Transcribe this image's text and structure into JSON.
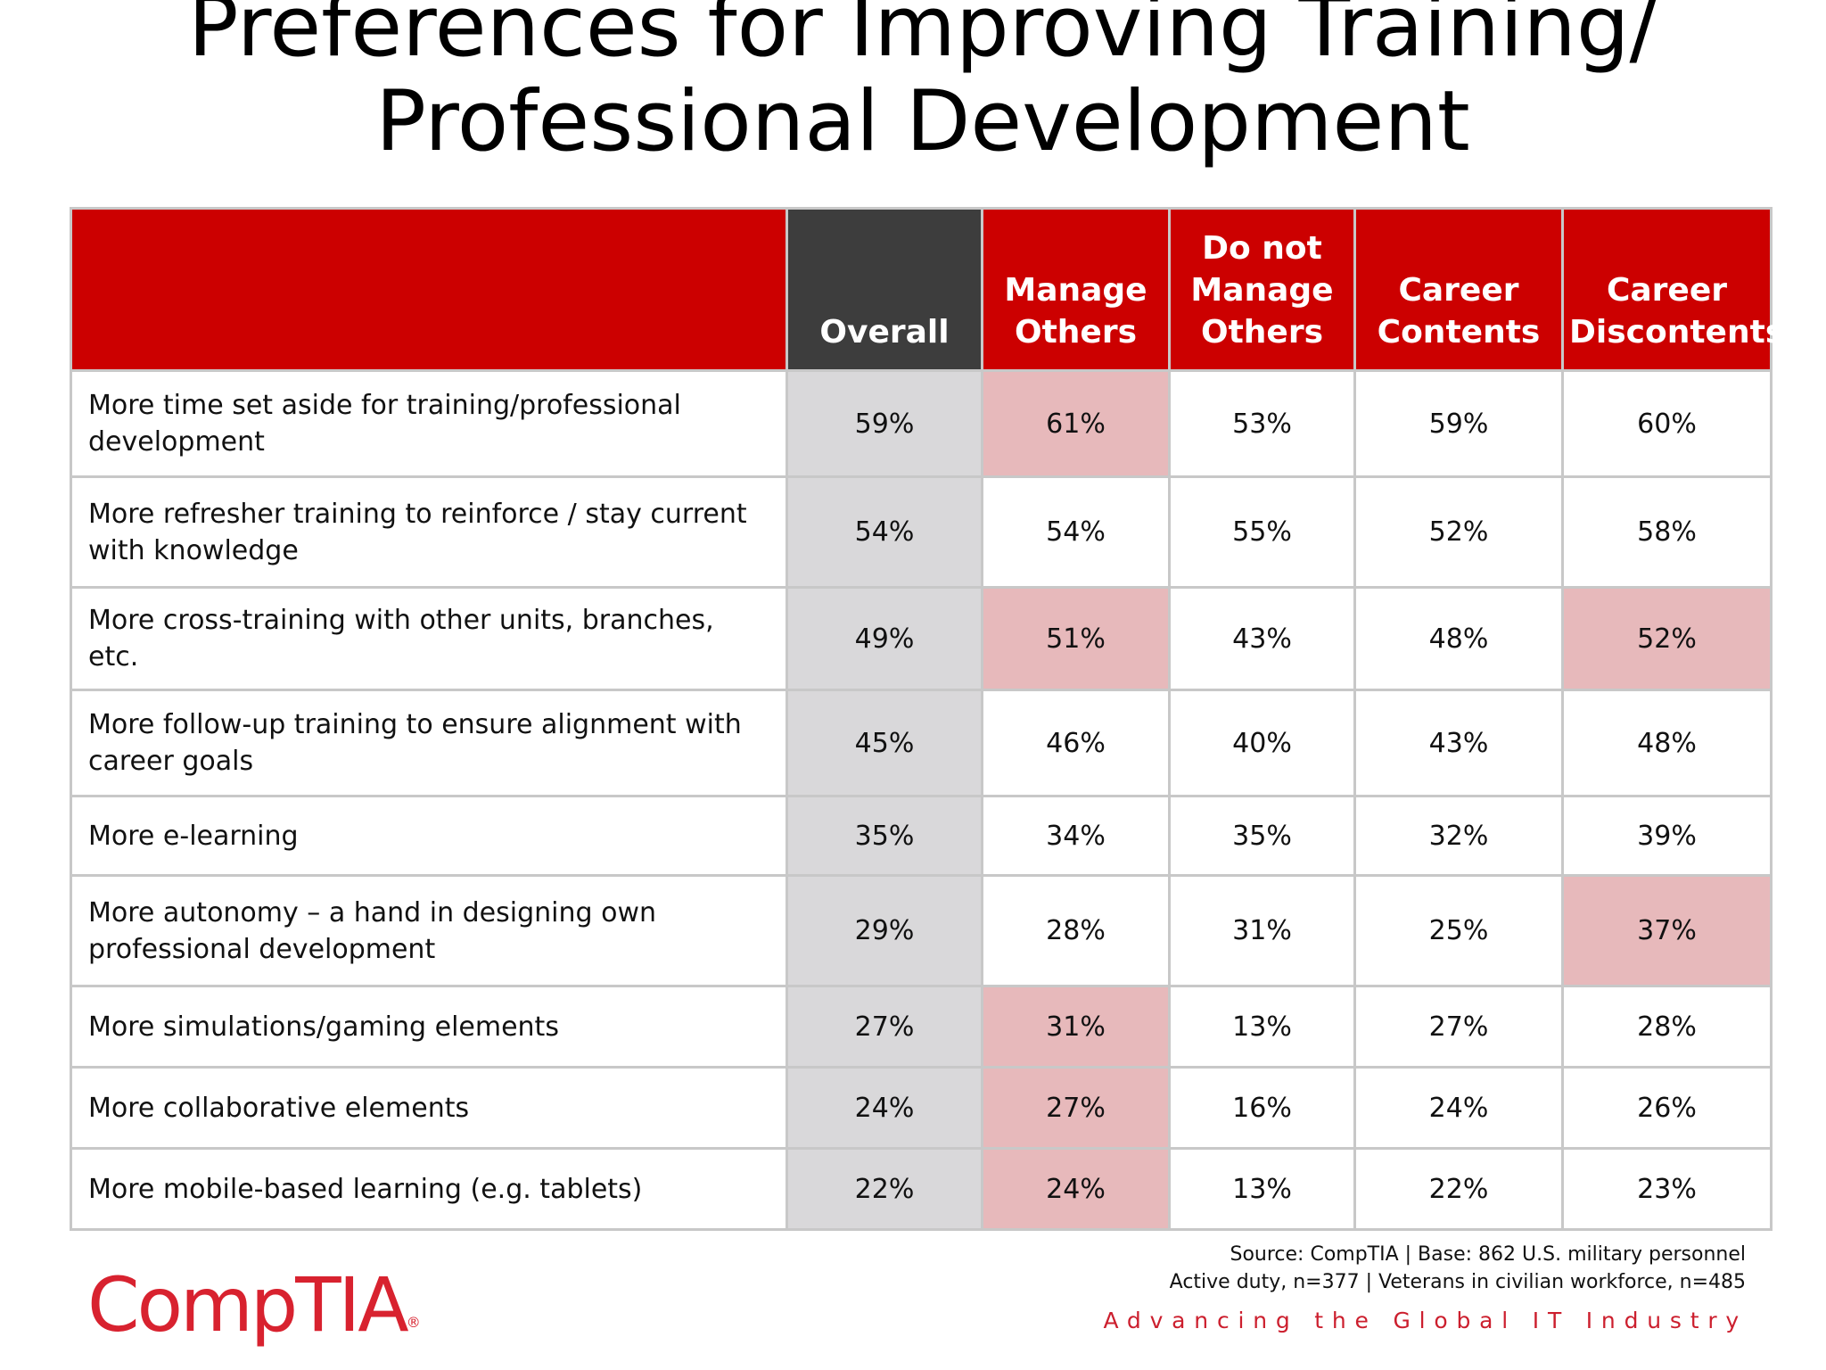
{
  "title": "Preferences for Improving Training/ Professional Development",
  "colors": {
    "header_red": "#cc0000",
    "header_dark": "#3d3d3d",
    "overall_fill": "#d9d8da",
    "highlight_fill": "#e7b9bb",
    "brand_red": "#d8222f"
  },
  "chart_data": {
    "type": "table",
    "title": "Preferences for Improving Training/ Professional Development",
    "columns": [
      "Overall",
      "Manage Others",
      "Do not Manage Others",
      "Career Contents",
      "Career Discontents"
    ],
    "rows": [
      {
        "label": "More time set aside for training/professional development",
        "values": [
          "59%",
          "61%",
          "53%",
          "59%",
          "60%"
        ],
        "highlight": [
          false,
          true,
          false,
          false,
          false
        ]
      },
      {
        "label": "More refresher training to reinforce / stay current with knowledge",
        "values": [
          "54%",
          "54%",
          "55%",
          "52%",
          "58%"
        ],
        "highlight": [
          false,
          false,
          false,
          false,
          false
        ]
      },
      {
        "label": "More cross-training with other units, branches, etc.",
        "values": [
          "49%",
          "51%",
          "43%",
          "48%",
          "52%"
        ],
        "highlight": [
          false,
          true,
          false,
          false,
          true
        ]
      },
      {
        "label": "More follow-up training to ensure alignment with career goals",
        "values": [
          "45%",
          "46%",
          "40%",
          "43%",
          "48%"
        ],
        "highlight": [
          false,
          false,
          false,
          false,
          false
        ]
      },
      {
        "label": "More e-learning",
        "values": [
          "35%",
          "34%",
          "35%",
          "32%",
          "39%"
        ],
        "highlight": [
          false,
          false,
          false,
          false,
          false
        ]
      },
      {
        "label": "More autonomy – a hand in designing own professional development",
        "values": [
          "29%",
          "28%",
          "31%",
          "25%",
          "37%"
        ],
        "highlight": [
          false,
          false,
          false,
          false,
          true
        ]
      },
      {
        "label": "More simulations/gaming elements",
        "values": [
          "27%",
          "31%",
          "13%",
          "27%",
          "28%"
        ],
        "highlight": [
          false,
          true,
          false,
          false,
          false
        ]
      },
      {
        "label": "More collaborative elements",
        "values": [
          "24%",
          "27%",
          "16%",
          "24%",
          "26%"
        ],
        "highlight": [
          false,
          true,
          false,
          false,
          false
        ]
      },
      {
        "label": "More mobile-based learning (e.g. tablets)",
        "values": [
          "22%",
          "24%",
          "13%",
          "22%",
          "23%"
        ],
        "highlight": [
          false,
          true,
          false,
          false,
          false
        ]
      }
    ]
  },
  "footer": {
    "source_line1": "Source: CompTIA | Base: 862 U.S. military personnel",
    "source_line2": "Active duty, n=377 | Veterans in civilian workforce, n=485",
    "tagline": "Advancing the Global IT Industry",
    "logo_text": "CompTIA",
    "logo_mark": "®"
  }
}
